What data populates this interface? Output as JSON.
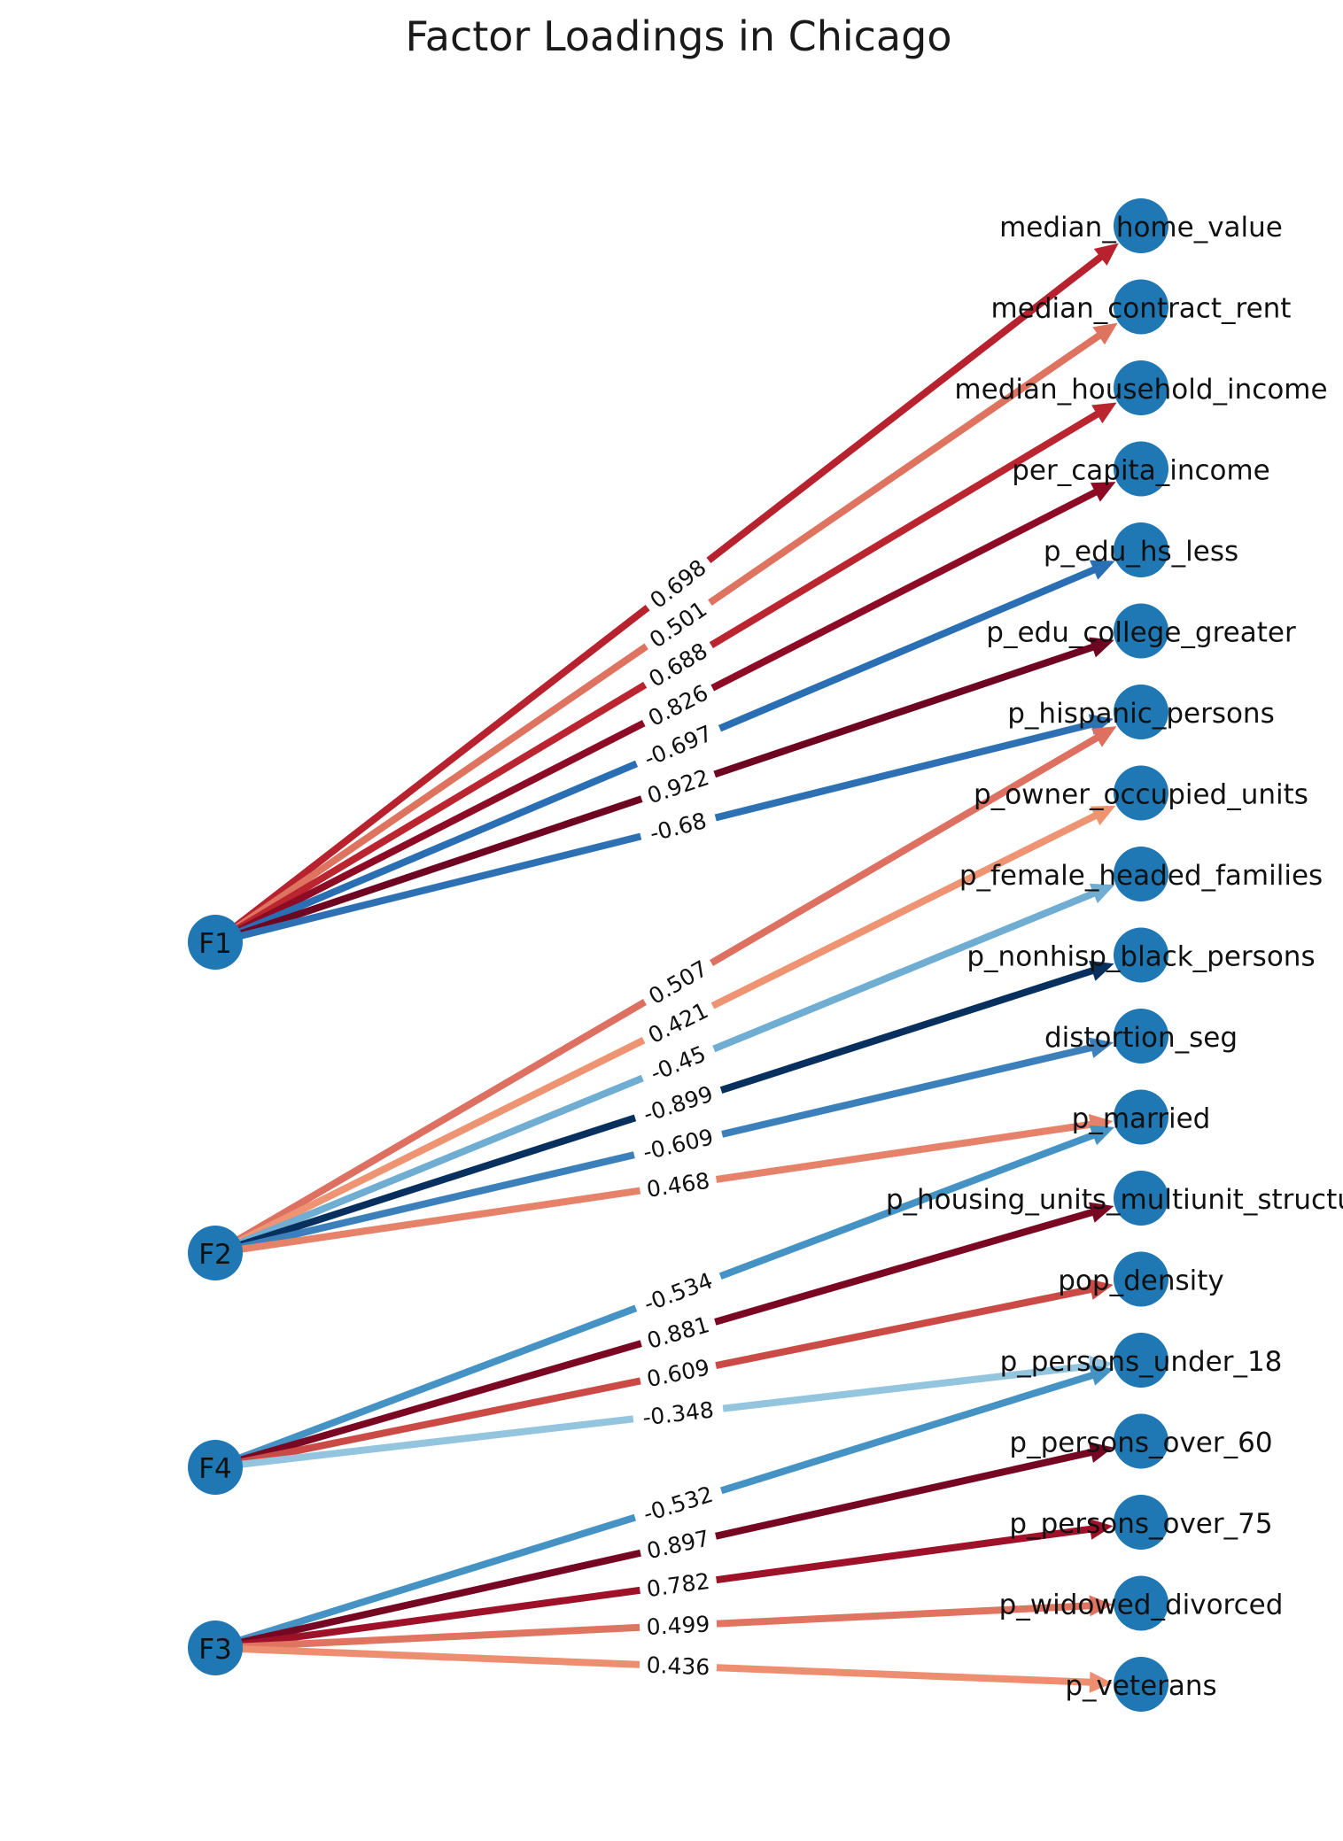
{
  "title": "Factor Loadings in Chicago",
  "node_color": "#1f77b4",
  "factors": [
    {
      "id": "F1",
      "label": "F1"
    },
    {
      "id": "F2",
      "label": "F2"
    },
    {
      "id": "F4",
      "label": "F4"
    },
    {
      "id": "F3",
      "label": "F3"
    }
  ],
  "variables": [
    {
      "id": "median_home_value",
      "label": "median_home_value"
    },
    {
      "id": "median_contract_rent",
      "label": "median_contract_rent"
    },
    {
      "id": "median_household_income",
      "label": "median_household_income"
    },
    {
      "id": "per_capita_income",
      "label": "per_capita_income"
    },
    {
      "id": "p_edu_hs_less",
      "label": "p_edu_hs_less"
    },
    {
      "id": "p_edu_college_greater",
      "label": "p_edu_college_greater"
    },
    {
      "id": "p_hispanic_persons",
      "label": "p_hispanic_persons"
    },
    {
      "id": "p_owner_occupied_units",
      "label": "p_owner_occupied_units"
    },
    {
      "id": "p_female_headed_families",
      "label": "p_female_headed_families"
    },
    {
      "id": "p_nonhisp_black_persons",
      "label": "p_nonhisp_black_persons"
    },
    {
      "id": "distortion_seg",
      "label": "distortion_seg"
    },
    {
      "id": "p_married",
      "label": "p_married"
    },
    {
      "id": "p_housing_units_multiunit_structures",
      "label": "p_housing_units_multiunit_structures"
    },
    {
      "id": "pop_density",
      "label": "pop_density"
    },
    {
      "id": "p_persons_under_18",
      "label": "p_persons_under_18"
    },
    {
      "id": "p_persons_over_60",
      "label": "p_persons_over_60"
    },
    {
      "id": "p_persons_over_75",
      "label": "p_persons_over_75"
    },
    {
      "id": "p_widowed_divorced",
      "label": "p_widowed_divorced"
    },
    {
      "id": "p_veterans",
      "label": "p_veterans"
    }
  ],
  "edges": [
    {
      "from": "F1",
      "to": "median_home_value",
      "loading": 0.698,
      "label": "0.698",
      "color": "#b8222e"
    },
    {
      "from": "F1",
      "to": "median_contract_rent",
      "loading": 0.501,
      "label": "0.501",
      "color": "#de7360"
    },
    {
      "from": "F1",
      "to": "median_household_income",
      "loading": 0.688,
      "label": "0.688",
      "color": "#ba2530"
    },
    {
      "from": "F1",
      "to": "per_capita_income",
      "loading": 0.826,
      "label": "0.826",
      "color": "#8e0b26"
    },
    {
      "from": "F1",
      "to": "p_edu_hs_less",
      "loading": -0.697,
      "label": "-0.697",
      "color": "#2a6eb3"
    },
    {
      "from": "F1",
      "to": "p_edu_college_greater",
      "loading": 0.922,
      "label": "0.922",
      "color": "#6e0621"
    },
    {
      "from": "F1",
      "to": "p_hispanic_persons",
      "loading": -0.68,
      "label": "-0.68",
      "color": "#2d71b4"
    },
    {
      "from": "F2",
      "to": "p_hispanic_persons",
      "loading": 0.507,
      "label": "0.507",
      "color": "#dd7060"
    },
    {
      "from": "F2",
      "to": "p_owner_occupied_units",
      "loading": 0.421,
      "label": "0.421",
      "color": "#ee9472"
    },
    {
      "from": "F2",
      "to": "p_female_headed_families",
      "loading": -0.45,
      "label": "-0.45",
      "color": "#6fadd2"
    },
    {
      "from": "F2",
      "to": "p_nonhisp_black_persons",
      "loading": -0.899,
      "label": "-0.899",
      "color": "#08305e"
    },
    {
      "from": "F2",
      "to": "distortion_seg",
      "loading": -0.609,
      "label": "-0.609",
      "color": "#3b7fbb"
    },
    {
      "from": "F2",
      "to": "p_married",
      "loading": 0.468,
      "label": "0.468",
      "color": "#e6826a"
    },
    {
      "from": "F4",
      "to": "p_married",
      "loading": -0.534,
      "label": "-0.534",
      "color": "#4592c4"
    },
    {
      "from": "F4",
      "to": "p_housing_units_multiunit_structures",
      "loading": 0.881,
      "label": "0.881",
      "color": "#7b0823"
    },
    {
      "from": "F4",
      "to": "pop_density",
      "loading": 0.609,
      "label": "0.609",
      "color": "#cb4a45"
    },
    {
      "from": "F4",
      "to": "p_persons_under_18",
      "loading": -0.348,
      "label": "-0.348",
      "color": "#93c5df"
    },
    {
      "from": "F3",
      "to": "p_persons_under_18",
      "loading": -0.532,
      "label": "-0.532",
      "color": "#4593c4"
    },
    {
      "from": "F3",
      "to": "p_persons_over_60",
      "loading": 0.897,
      "label": "0.897",
      "color": "#760722"
    },
    {
      "from": "F3",
      "to": "p_persons_over_75",
      "loading": 0.782,
      "label": "0.782",
      "color": "#9e1129"
    },
    {
      "from": "F3",
      "to": "p_widowed_divorced",
      "loading": 0.499,
      "label": "0.499",
      "color": "#df7461"
    },
    {
      "from": "F3",
      "to": "p_veterans",
      "loading": 0.436,
      "label": "0.436",
      "color": "#ec8e6f"
    }
  ]
}
